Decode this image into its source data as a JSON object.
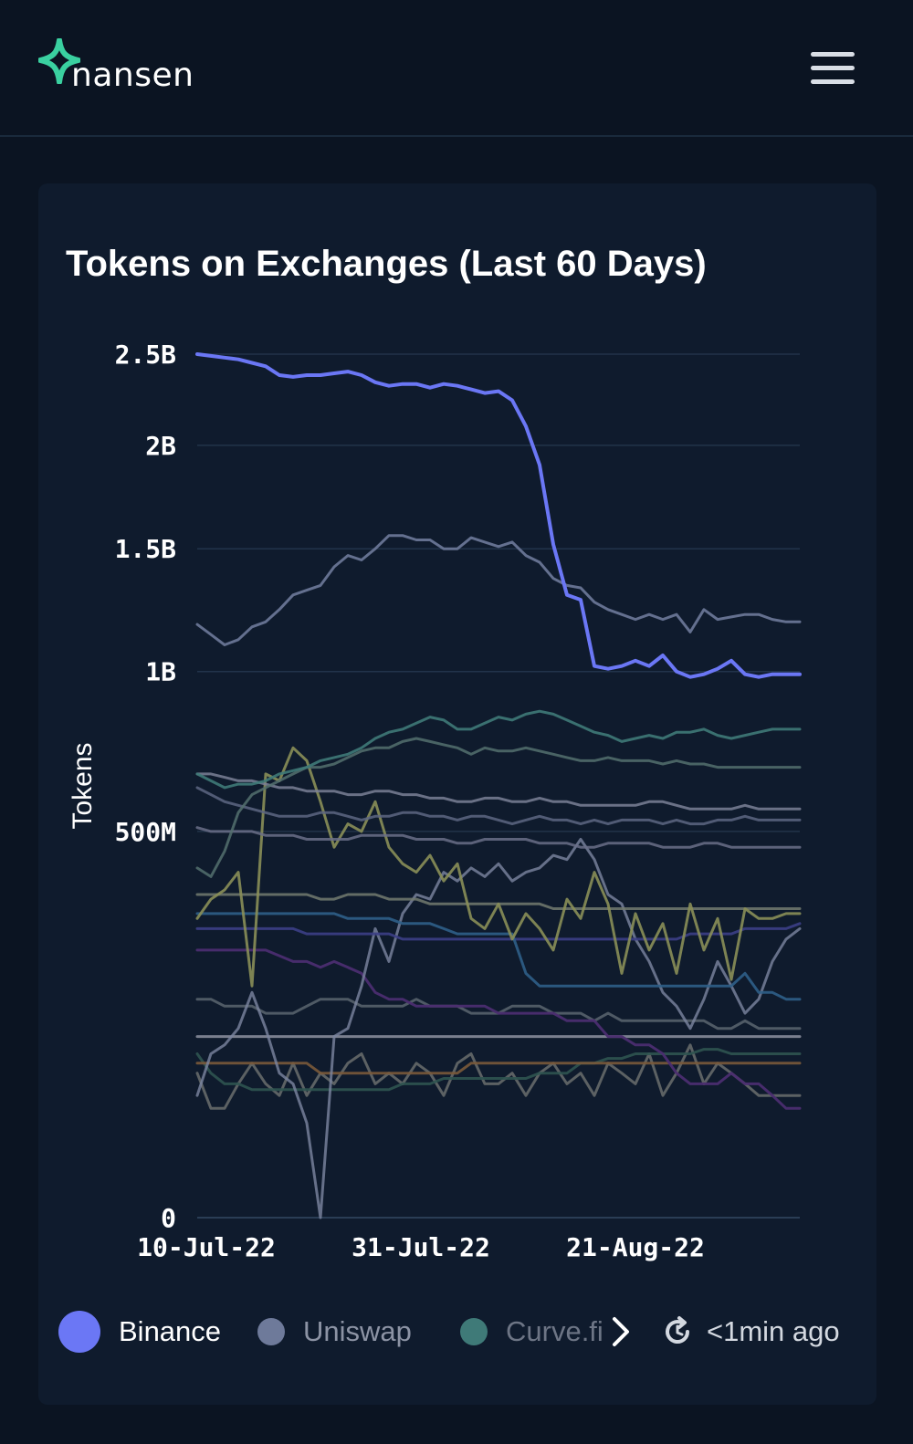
{
  "header": {
    "logo_text": "nansen",
    "colors": {
      "brand": "#3ad0a0",
      "background": "#0b1422"
    },
    "menu_icon": "hamburger-icon"
  },
  "card": {
    "title": "Tokens on Exchanges (Last 60 Days)"
  },
  "legend": {
    "items": [
      {
        "label": "Binance",
        "color": "#6b77f5"
      },
      {
        "label": "Uniswap",
        "color": "#6e7a9a"
      },
      {
        "label": "Curve.fi",
        "color": "#3f7a78"
      }
    ],
    "next_icon": "chevron-right-icon",
    "refresh_icon": "refresh-icon",
    "updated_text": "<1min ago"
  },
  "chart_data": {
    "type": "line",
    "ylabel": "Tokens",
    "xlabel": "",
    "y_scale": "sqrt",
    "y_ticks": [
      {
        "value": 0,
        "label": "0"
      },
      {
        "value": 500000000,
        "label": "500M"
      },
      {
        "value": 1000000000,
        "label": "1B"
      },
      {
        "value": 1500000000,
        "label": "1.5B"
      },
      {
        "value": 2000000000,
        "label": "2B"
      },
      {
        "value": 2500000000,
        "label": "2.5B"
      }
    ],
    "ylim": [
      0,
      2500000000
    ],
    "x_ticks": [
      "10-Jul-22",
      "31-Jul-22",
      "21-Aug-22"
    ],
    "x_range": [
      "9-Jul-22",
      "6-Sep-22"
    ],
    "grid": true,
    "legend_position": "bottom",
    "series": [
      {
        "color": "#6b77f5",
        "width": 4,
        "opacity": 1,
        "values": [
          2.5,
          2.49,
          2.48,
          2.47,
          2.45,
          2.43,
          2.38,
          2.37,
          2.38,
          2.38,
          2.39,
          2.4,
          2.38,
          2.34,
          2.32,
          2.33,
          2.33,
          2.31,
          2.33,
          2.32,
          2.3,
          2.28,
          2.29,
          2.24,
          2.1,
          1.9,
          1.52,
          1.3,
          1.28,
          1.02,
          1.01,
          1.02,
          1.04,
          1.02,
          1.06,
          1.0,
          0.98,
          0.99,
          1.01,
          1.04,
          0.99,
          0.98,
          0.99,
          0.99,
          0.99
        ]
      },
      {
        "color": "#6e7a9a",
        "width": 3,
        "opacity": 0.9,
        "values": [
          1.18,
          1.14,
          1.1,
          1.12,
          1.17,
          1.19,
          1.24,
          1.3,
          1.32,
          1.34,
          1.42,
          1.47,
          1.45,
          1.5,
          1.56,
          1.56,
          1.54,
          1.54,
          1.5,
          1.5,
          1.55,
          1.53,
          1.51,
          1.53,
          1.47,
          1.44,
          1.37,
          1.34,
          1.33,
          1.27,
          1.24,
          1.22,
          1.2,
          1.22,
          1.2,
          1.22,
          1.15,
          1.24,
          1.2,
          1.21,
          1.22,
          1.22,
          1.2,
          1.19,
          1.19
        ]
      },
      {
        "color": "#3f7a78",
        "width": 3,
        "opacity": 0.9,
        "values": [
          0.66,
          0.64,
          0.62,
          0.63,
          0.63,
          0.64,
          0.66,
          0.67,
          0.68,
          0.7,
          0.71,
          0.72,
          0.74,
          0.77,
          0.79,
          0.8,
          0.82,
          0.84,
          0.83,
          0.8,
          0.8,
          0.82,
          0.84,
          0.83,
          0.85,
          0.86,
          0.85,
          0.83,
          0.81,
          0.79,
          0.78,
          0.76,
          0.77,
          0.78,
          0.77,
          0.79,
          0.79,
          0.8,
          0.78,
          0.77,
          0.78,
          0.79,
          0.8,
          0.8,
          0.8
        ]
      },
      {
        "color": "#54706e",
        "width": 3,
        "opacity": 0.85,
        "values": [
          0.41,
          0.39,
          0.45,
          0.55,
          0.6,
          0.62,
          0.64,
          0.66,
          0.68,
          0.68,
          0.69,
          0.71,
          0.73,
          0.74,
          0.74,
          0.76,
          0.77,
          0.76,
          0.75,
          0.74,
          0.72,
          0.74,
          0.73,
          0.73,
          0.74,
          0.73,
          0.72,
          0.71,
          0.7,
          0.7,
          0.71,
          0.7,
          0.7,
          0.7,
          0.69,
          0.7,
          0.69,
          0.69,
          0.68,
          0.68,
          0.68,
          0.68,
          0.68,
          0.68,
          0.68
        ]
      },
      {
        "color": "#7a8096",
        "width": 3,
        "opacity": 0.85,
        "values": [
          0.66,
          0.66,
          0.65,
          0.64,
          0.64,
          0.63,
          0.62,
          0.62,
          0.61,
          0.61,
          0.61,
          0.6,
          0.6,
          0.61,
          0.61,
          0.6,
          0.6,
          0.59,
          0.59,
          0.58,
          0.58,
          0.59,
          0.59,
          0.58,
          0.58,
          0.59,
          0.58,
          0.58,
          0.57,
          0.57,
          0.57,
          0.57,
          0.57,
          0.58,
          0.58,
          0.57,
          0.56,
          0.56,
          0.56,
          0.56,
          0.57,
          0.56,
          0.56,
          0.56,
          0.56
        ]
      },
      {
        "color": "#5d6683",
        "width": 3,
        "opacity": 0.85,
        "values": [
          0.62,
          0.6,
          0.58,
          0.57,
          0.56,
          0.55,
          0.54,
          0.54,
          0.54,
          0.55,
          0.55,
          0.54,
          0.53,
          0.54,
          0.54,
          0.55,
          0.55,
          0.54,
          0.54,
          0.53,
          0.54,
          0.54,
          0.53,
          0.52,
          0.53,
          0.54,
          0.53,
          0.53,
          0.52,
          0.53,
          0.52,
          0.53,
          0.53,
          0.53,
          0.52,
          0.53,
          0.52,
          0.52,
          0.53,
          0.53,
          0.54,
          0.53,
          0.53,
          0.53,
          0.53
        ]
      },
      {
        "color": "#6a6f88",
        "width": 3,
        "opacity": 0.85,
        "values": [
          0.51,
          0.5,
          0.5,
          0.5,
          0.5,
          0.49,
          0.49,
          0.49,
          0.48,
          0.48,
          0.48,
          0.48,
          0.49,
          0.49,
          0.49,
          0.49,
          0.48,
          0.48,
          0.48,
          0.47,
          0.47,
          0.48,
          0.48,
          0.48,
          0.48,
          0.47,
          0.47,
          0.47,
          0.46,
          0.46,
          0.47,
          0.47,
          0.47,
          0.47,
          0.46,
          0.46,
          0.46,
          0.47,
          0.47,
          0.46,
          0.46,
          0.46,
          0.46,
          0.46,
          0.46
        ]
      },
      {
        "color": "#8a8f58",
        "width": 3,
        "opacity": 0.9,
        "values": [
          0.3,
          0.34,
          0.36,
          0.4,
          0.18,
          0.66,
          0.64,
          0.74,
          0.7,
          0.58,
          0.46,
          0.52,
          0.5,
          0.58,
          0.46,
          0.42,
          0.4,
          0.44,
          0.38,
          0.42,
          0.3,
          0.28,
          0.33,
          0.26,
          0.31,
          0.28,
          0.24,
          0.34,
          0.3,
          0.4,
          0.33,
          0.2,
          0.31,
          0.24,
          0.29,
          0.2,
          0.33,
          0.24,
          0.3,
          0.19,
          0.32,
          0.3,
          0.3,
          0.31,
          0.31
        ]
      },
      {
        "color": "#727a70",
        "width": 3,
        "opacity": 0.85,
        "values": [
          0.35,
          0.35,
          0.35,
          0.35,
          0.35,
          0.35,
          0.35,
          0.35,
          0.35,
          0.34,
          0.34,
          0.35,
          0.35,
          0.35,
          0.34,
          0.34,
          0.34,
          0.33,
          0.33,
          0.33,
          0.33,
          0.33,
          0.33,
          0.33,
          0.33,
          0.33,
          0.32,
          0.32,
          0.32,
          0.32,
          0.32,
          0.32,
          0.32,
          0.32,
          0.32,
          0.32,
          0.32,
          0.32,
          0.32,
          0.32,
          0.32,
          0.32,
          0.32,
          0.32,
          0.32
        ]
      },
      {
        "color": "#2f5f88",
        "width": 3,
        "opacity": 0.9,
        "values": [
          0.31,
          0.31,
          0.31,
          0.31,
          0.31,
          0.31,
          0.31,
          0.31,
          0.31,
          0.31,
          0.31,
          0.3,
          0.3,
          0.3,
          0.3,
          0.29,
          0.29,
          0.29,
          0.28,
          0.27,
          0.27,
          0.27,
          0.27,
          0.27,
          0.2,
          0.18,
          0.18,
          0.18,
          0.18,
          0.18,
          0.18,
          0.18,
          0.18,
          0.18,
          0.18,
          0.18,
          0.18,
          0.18,
          0.18,
          0.18,
          0.2,
          0.17,
          0.17,
          0.16,
          0.16
        ]
      },
      {
        "color": "#3c3f86",
        "width": 3,
        "opacity": 0.9,
        "values": [
          0.28,
          0.28,
          0.28,
          0.28,
          0.28,
          0.28,
          0.28,
          0.28,
          0.27,
          0.27,
          0.27,
          0.27,
          0.27,
          0.27,
          0.27,
          0.26,
          0.26,
          0.26,
          0.26,
          0.26,
          0.26,
          0.26,
          0.26,
          0.26,
          0.26,
          0.26,
          0.26,
          0.26,
          0.26,
          0.26,
          0.26,
          0.26,
          0.26,
          0.26,
          0.26,
          0.26,
          0.27,
          0.27,
          0.27,
          0.27,
          0.28,
          0.28,
          0.28,
          0.28,
          0.29
        ]
      },
      {
        "color": "#7c86a0",
        "width": 3,
        "opacity": 0.8,
        "values": [
          0.05,
          0.09,
          0.1,
          0.12,
          0.17,
          0.12,
          0.07,
          0.06,
          0.03,
          0.0,
          0.11,
          0.12,
          0.18,
          0.28,
          0.22,
          0.31,
          0.35,
          0.34,
          0.4,
          0.38,
          0.41,
          0.39,
          0.42,
          0.38,
          0.4,
          0.41,
          0.44,
          0.43,
          0.48,
          0.43,
          0.35,
          0.33,
          0.26,
          0.22,
          0.17,
          0.15,
          0.12,
          0.16,
          0.22,
          0.18,
          0.14,
          0.16,
          0.22,
          0.26,
          0.28
        ]
      },
      {
        "color": "#4b2d70",
        "width": 3,
        "opacity": 0.95,
        "values": [
          0.24,
          0.24,
          0.24,
          0.24,
          0.24,
          0.24,
          0.23,
          0.22,
          0.22,
          0.21,
          0.22,
          0.21,
          0.2,
          0.17,
          0.16,
          0.16,
          0.15,
          0.15,
          0.15,
          0.15,
          0.15,
          0.15,
          0.14,
          0.14,
          0.14,
          0.14,
          0.14,
          0.13,
          0.13,
          0.13,
          0.11,
          0.11,
          0.1,
          0.1,
          0.09,
          0.07,
          0.06,
          0.06,
          0.06,
          0.07,
          0.06,
          0.06,
          0.05,
          0.04,
          0.04
        ]
      },
      {
        "color": "#5a6570",
        "width": 3,
        "opacity": 0.85,
        "values": [
          0.16,
          0.16,
          0.15,
          0.15,
          0.15,
          0.14,
          0.14,
          0.14,
          0.15,
          0.16,
          0.16,
          0.16,
          0.15,
          0.15,
          0.15,
          0.15,
          0.16,
          0.15,
          0.15,
          0.15,
          0.14,
          0.14,
          0.14,
          0.15,
          0.15,
          0.15,
          0.14,
          0.14,
          0.14,
          0.13,
          0.14,
          0.13,
          0.13,
          0.13,
          0.13,
          0.13,
          0.13,
          0.13,
          0.12,
          0.12,
          0.13,
          0.12,
          0.12,
          0.12,
          0.12
        ]
      },
      {
        "color": "#a8aab8",
        "width": 3,
        "opacity": 0.7,
        "values": [
          0.11,
          0.11,
          0.11,
          0.11,
          0.11,
          0.11,
          0.11,
          0.11,
          0.11,
          0.11,
          0.11,
          0.11,
          0.11,
          0.11,
          0.11,
          0.11,
          0.11,
          0.11,
          0.11,
          0.11,
          0.11,
          0.11,
          0.11,
          0.11,
          0.11,
          0.11,
          0.11,
          0.11,
          0.11,
          0.11,
          0.11,
          0.11,
          0.11,
          0.11,
          0.11,
          0.11,
          0.11,
          0.11,
          0.11,
          0.11,
          0.11,
          0.11,
          0.11,
          0.11,
          0.11
        ]
      },
      {
        "color": "#7a5a3a",
        "width": 3,
        "opacity": 0.9,
        "values": [
          0.08,
          0.08,
          0.08,
          0.08,
          0.08,
          0.08,
          0.08,
          0.08,
          0.08,
          0.07,
          0.07,
          0.07,
          0.07,
          0.07,
          0.07,
          0.07,
          0.07,
          0.07,
          0.07,
          0.07,
          0.08,
          0.08,
          0.08,
          0.08,
          0.08,
          0.08,
          0.08,
          0.08,
          0.08,
          0.08,
          0.08,
          0.08,
          0.08,
          0.08,
          0.08,
          0.08,
          0.08,
          0.08,
          0.08,
          0.08,
          0.08,
          0.08,
          0.08,
          0.08,
          0.08
        ]
      },
      {
        "color": "#2f5450",
        "width": 3,
        "opacity": 0.9,
        "values": [
          0.09,
          0.07,
          0.06,
          0.06,
          0.055,
          0.055,
          0.055,
          0.055,
          0.055,
          0.055,
          0.055,
          0.055,
          0.055,
          0.055,
          0.055,
          0.06,
          0.06,
          0.06,
          0.065,
          0.065,
          0.065,
          0.065,
          0.065,
          0.065,
          0.065,
          0.07,
          0.07,
          0.07,
          0.08,
          0.08,
          0.085,
          0.085,
          0.09,
          0.09,
          0.09,
          0.09,
          0.09,
          0.095,
          0.095,
          0.09,
          0.09,
          0.09,
          0.09,
          0.09,
          0.09
        ]
      },
      {
        "color": "#6f7370",
        "width": 3,
        "opacity": 0.8,
        "values": [
          0.07,
          0.04,
          0.04,
          0.06,
          0.08,
          0.06,
          0.05,
          0.08,
          0.05,
          0.07,
          0.06,
          0.08,
          0.09,
          0.06,
          0.07,
          0.06,
          0.08,
          0.07,
          0.05,
          0.08,
          0.09,
          0.06,
          0.06,
          0.07,
          0.05,
          0.07,
          0.08,
          0.06,
          0.07,
          0.05,
          0.08,
          0.07,
          0.06,
          0.09,
          0.05,
          0.07,
          0.1,
          0.06,
          0.08,
          0.07,
          0.06,
          0.05,
          0.05,
          0.05,
          0.05
        ]
      }
    ]
  }
}
